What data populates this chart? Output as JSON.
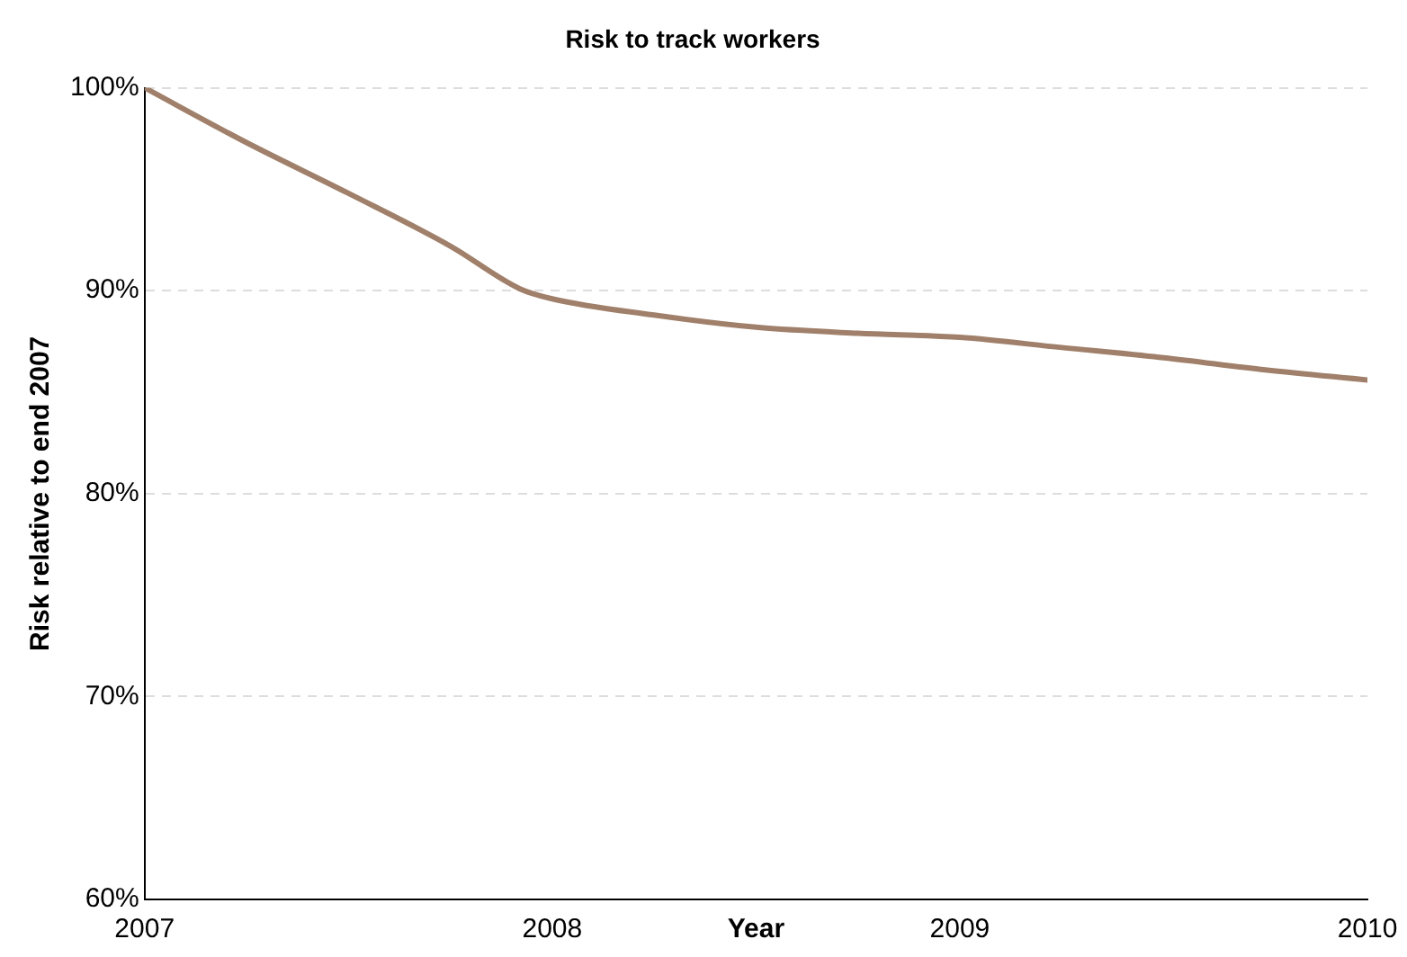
{
  "chart_data": {
    "type": "line",
    "title": "Risk to track workers",
    "xlabel": "Year",
    "ylabel": "Risk relative to end 2007",
    "x": [
      2007,
      2007.25,
      2007.5,
      2007.75,
      2007.92,
      2008,
      2008.25,
      2008.5,
      2008.75,
      2009,
      2009.25,
      2009.5,
      2009.75,
      2010
    ],
    "series": [
      {
        "color": "#a0806a",
        "values": [
          100,
          97.3,
          94.8,
          92.2,
          90.1,
          89.6,
          88.8,
          88.2,
          87.9,
          87.7,
          87.2,
          86.7,
          86.1,
          85.6
        ]
      }
    ],
    "xlim": [
      2007,
      2010
    ],
    "xticks": [
      2007,
      2008,
      2009,
      2010
    ],
    "ylim": [
      60,
      100
    ],
    "yticks": [
      {
        "value": 60,
        "label": "60%"
      },
      {
        "value": 70,
        "label": "70%"
      },
      {
        "value": 80,
        "label": "80%"
      },
      {
        "value": 90,
        "label": "90%"
      },
      {
        "value": 100,
        "label": "100%"
      }
    ],
    "grid": "y",
    "legend": false,
    "marker": "none",
    "line_style": "solid"
  }
}
